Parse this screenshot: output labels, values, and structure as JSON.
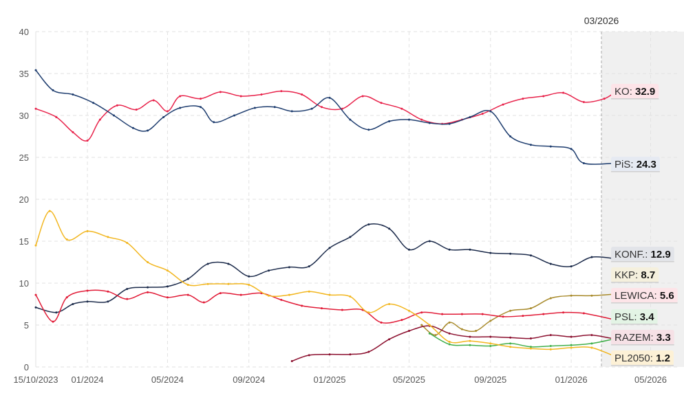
{
  "chart_data": {
    "type": "line",
    "title": "",
    "xlabel": "",
    "ylabel": "",
    "ylim": [
      0,
      40
    ],
    "xlim": [
      "2023-10-15",
      "2026-06-10"
    ],
    "x_ticks": [
      "15/10/2023",
      "01/2024",
      "05/2024",
      "09/2024",
      "01/2025",
      "05/2025",
      "09/2025",
      "01/2026",
      "05/2026"
    ],
    "x_tick_dates": [
      "2023-10-15",
      "2024-01-01",
      "2024-05-01",
      "2024-09-01",
      "2025-01-01",
      "2025-05-01",
      "2025-09-01",
      "2026-01-01",
      "2026-05-01"
    ],
    "y_ticks": [
      0,
      5,
      10,
      15,
      20,
      25,
      30,
      35,
      40
    ],
    "grid": true,
    "current_date_label": "03/2026",
    "current_date": "2026-03-10",
    "series": [
      {
        "name": "KO",
        "value_label": "32.9",
        "color": "#e8224a",
        "badge_bg": "#fde4e8",
        "points": [
          [
            "2023-10-15",
            30.8
          ],
          [
            "2023-11-15",
            29.8
          ],
          [
            "2023-12-10",
            28.0
          ],
          [
            "2024-01-01",
            27.0
          ],
          [
            "2024-01-20",
            29.5
          ],
          [
            "2024-02-15",
            31.2
          ],
          [
            "2024-03-15",
            30.7
          ],
          [
            "2024-04-10",
            31.8
          ],
          [
            "2024-05-01",
            30.5
          ],
          [
            "2024-05-20",
            32.3
          ],
          [
            "2024-06-20",
            32.0
          ],
          [
            "2024-07-20",
            32.8
          ],
          [
            "2024-08-20",
            32.3
          ],
          [
            "2024-09-20",
            32.5
          ],
          [
            "2024-10-20",
            32.9
          ],
          [
            "2024-11-20",
            32.5
          ],
          [
            "2024-12-20",
            31.0
          ],
          [
            "2025-01-20",
            30.8
          ],
          [
            "2025-02-20",
            32.3
          ],
          [
            "2025-03-20",
            31.5
          ],
          [
            "2025-04-20",
            30.8
          ],
          [
            "2025-05-20",
            29.5
          ],
          [
            "2025-06-20",
            29.0
          ],
          [
            "2025-07-20",
            29.5
          ],
          [
            "2025-08-20",
            30.2
          ],
          [
            "2025-09-20",
            31.3
          ],
          [
            "2025-10-20",
            32.0
          ],
          [
            "2025-11-20",
            32.3
          ],
          [
            "2025-12-20",
            32.7
          ],
          [
            "2026-01-20",
            31.6
          ],
          [
            "2026-02-20",
            32.0
          ],
          [
            "2026-03-10",
            32.9
          ]
        ]
      },
      {
        "name": "PiS",
        "value_label": "24.3",
        "color": "#1d3c6e",
        "badge_bg": "#e6eaf2",
        "points": [
          [
            "2023-10-15",
            35.4
          ],
          [
            "2023-11-10",
            33.0
          ],
          [
            "2023-12-10",
            32.5
          ],
          [
            "2024-01-10",
            31.5
          ],
          [
            "2024-02-10",
            30.0
          ],
          [
            "2024-03-10",
            28.5
          ],
          [
            "2024-04-01",
            28.2
          ],
          [
            "2024-04-25",
            29.8
          ],
          [
            "2024-05-20",
            30.9
          ],
          [
            "2024-06-20",
            31.0
          ],
          [
            "2024-07-10",
            29.2
          ],
          [
            "2024-08-10",
            30.0
          ],
          [
            "2024-09-10",
            30.9
          ],
          [
            "2024-10-10",
            31.0
          ],
          [
            "2024-11-05",
            30.5
          ],
          [
            "2024-12-05",
            30.8
          ],
          [
            "2025-01-01",
            32.1
          ],
          [
            "2025-02-01",
            29.5
          ],
          [
            "2025-03-01",
            28.3
          ],
          [
            "2025-04-01",
            29.3
          ],
          [
            "2025-05-01",
            29.5
          ],
          [
            "2025-06-01",
            29.1
          ],
          [
            "2025-07-01",
            29.0
          ],
          [
            "2025-08-01",
            29.8
          ],
          [
            "2025-09-01",
            30.5
          ],
          [
            "2025-10-01",
            27.5
          ],
          [
            "2025-11-01",
            26.5
          ],
          [
            "2025-12-01",
            26.3
          ],
          [
            "2026-01-01",
            26.0
          ],
          [
            "2026-01-20",
            24.3
          ],
          [
            "2026-03-10",
            24.3
          ]
        ]
      },
      {
        "name": "KONF.",
        "value_label": "12.9",
        "color": "#1b2a4a",
        "badge_bg": "#e2e4e9",
        "points": [
          [
            "2023-10-15",
            7.1
          ],
          [
            "2023-11-15",
            6.5
          ],
          [
            "2023-12-10",
            7.5
          ],
          [
            "2024-01-01",
            7.8
          ],
          [
            "2024-02-01",
            7.8
          ],
          [
            "2024-03-01",
            9.3
          ],
          [
            "2024-04-01",
            9.5
          ],
          [
            "2024-05-01",
            9.6
          ],
          [
            "2024-06-01",
            10.5
          ],
          [
            "2024-07-01",
            12.3
          ],
          [
            "2024-08-01",
            12.3
          ],
          [
            "2024-09-01",
            10.8
          ],
          [
            "2024-10-01",
            11.5
          ],
          [
            "2024-11-01",
            11.9
          ],
          [
            "2024-12-01",
            12.0
          ],
          [
            "2025-01-01",
            14.2
          ],
          [
            "2025-02-01",
            15.5
          ],
          [
            "2025-03-01",
            17.0
          ],
          [
            "2025-04-01",
            16.5
          ],
          [
            "2025-05-01",
            14.0
          ],
          [
            "2025-06-01",
            15.0
          ],
          [
            "2025-07-01",
            14.0
          ],
          [
            "2025-08-01",
            14.0
          ],
          [
            "2025-09-01",
            13.6
          ],
          [
            "2025-10-01",
            13.5
          ],
          [
            "2025-11-01",
            13.3
          ],
          [
            "2025-12-01",
            12.3
          ],
          [
            "2026-01-01",
            12.0
          ],
          [
            "2026-02-01",
            13.1
          ],
          [
            "2026-03-10",
            12.9
          ]
        ]
      },
      {
        "name": "KKP",
        "value_label": "8.7",
        "color": "#a88a2b",
        "badge_bg": "#f5f0dd",
        "points": [
          [
            "2025-05-20",
            5.0
          ],
          [
            "2025-06-10",
            3.8
          ],
          [
            "2025-07-01",
            5.3
          ],
          [
            "2025-07-20",
            4.5
          ],
          [
            "2025-08-10",
            4.3
          ],
          [
            "2025-09-01",
            5.5
          ],
          [
            "2025-10-01",
            6.7
          ],
          [
            "2025-11-01",
            7.0
          ],
          [
            "2025-12-01",
            8.2
          ],
          [
            "2026-01-01",
            8.5
          ],
          [
            "2026-02-01",
            8.5
          ],
          [
            "2026-03-10",
            8.7
          ]
        ]
      },
      {
        "name": "LEWICA",
        "value_label": "5.6",
        "color": "#e11a36",
        "badge_bg": "#fde4e8",
        "points": [
          [
            "2023-10-15",
            8.6
          ],
          [
            "2023-11-10",
            5.4
          ],
          [
            "2023-12-01",
            8.3
          ],
          [
            "2024-01-01",
            9.1
          ],
          [
            "2024-02-01",
            9.0
          ],
          [
            "2024-03-01",
            8.1
          ],
          [
            "2024-04-01",
            8.9
          ],
          [
            "2024-05-01",
            8.3
          ],
          [
            "2024-06-01",
            8.6
          ],
          [
            "2024-06-25",
            7.7
          ],
          [
            "2024-07-20",
            8.8
          ],
          [
            "2024-08-20",
            8.6
          ],
          [
            "2024-09-20",
            8.8
          ],
          [
            "2024-10-20",
            8.0
          ],
          [
            "2024-11-20",
            7.3
          ],
          [
            "2024-12-20",
            7.0
          ],
          [
            "2025-01-20",
            6.8
          ],
          [
            "2025-02-20",
            6.8
          ],
          [
            "2025-03-20",
            5.3
          ],
          [
            "2025-04-20",
            5.6
          ],
          [
            "2025-05-20",
            6.5
          ],
          [
            "2025-06-20",
            6.3
          ],
          [
            "2025-07-20",
            6.3
          ],
          [
            "2025-08-20",
            6.3
          ],
          [
            "2025-09-20",
            6.0
          ],
          [
            "2025-10-20",
            6.1
          ],
          [
            "2025-11-20",
            6.3
          ],
          [
            "2025-12-20",
            6.5
          ],
          [
            "2026-01-20",
            6.4
          ],
          [
            "2026-03-10",
            5.6
          ]
        ]
      },
      {
        "name": "PSL",
        "value_label": "3.4",
        "color": "#3fae49",
        "badge_bg": "#e3f4e5",
        "points": [
          [
            "2025-06-01",
            4.0
          ],
          [
            "2025-07-01",
            2.7
          ],
          [
            "2025-08-01",
            2.6
          ],
          [
            "2025-09-01",
            2.5
          ],
          [
            "2025-10-01",
            2.8
          ],
          [
            "2025-11-01",
            2.4
          ],
          [
            "2025-12-01",
            2.5
          ],
          [
            "2026-01-01",
            2.6
          ],
          [
            "2026-02-01",
            2.8
          ],
          [
            "2026-03-10",
            3.4
          ]
        ]
      },
      {
        "name": "RAZEM",
        "value_label": "3.3",
        "color": "#8b0f2e",
        "badge_bg": "#f6e1e6",
        "points": [
          [
            "2024-11-05",
            0.7
          ],
          [
            "2024-12-01",
            1.4
          ],
          [
            "2025-01-01",
            1.5
          ],
          [
            "2025-02-01",
            1.5
          ],
          [
            "2025-03-01",
            1.8
          ],
          [
            "2025-04-01",
            3.3
          ],
          [
            "2025-05-01",
            4.3
          ],
          [
            "2025-06-01",
            4.9
          ],
          [
            "2025-07-01",
            4.0
          ],
          [
            "2025-08-01",
            3.6
          ],
          [
            "2025-09-01",
            3.6
          ],
          [
            "2025-10-01",
            3.5
          ],
          [
            "2025-11-01",
            3.4
          ],
          [
            "2025-12-01",
            3.8
          ],
          [
            "2026-01-01",
            3.6
          ],
          [
            "2026-02-01",
            3.8
          ],
          [
            "2026-03-10",
            3.3
          ]
        ]
      },
      {
        "name": "PL2050",
        "value_label": "1.2",
        "color": "#f2b61f",
        "badge_bg": "#fdf1d6",
        "points": [
          [
            "2023-10-15",
            14.5
          ],
          [
            "2023-11-05",
            18.6
          ],
          [
            "2023-12-01",
            15.2
          ],
          [
            "2024-01-01",
            16.2
          ],
          [
            "2024-02-01",
            15.5
          ],
          [
            "2024-03-01",
            14.8
          ],
          [
            "2024-04-01",
            12.5
          ],
          [
            "2024-05-01",
            11.5
          ],
          [
            "2024-06-01",
            9.8
          ],
          [
            "2024-07-01",
            9.9
          ],
          [
            "2024-08-01",
            9.9
          ],
          [
            "2024-09-01",
            9.8
          ],
          [
            "2024-10-01",
            8.5
          ],
          [
            "2024-11-01",
            8.6
          ],
          [
            "2024-12-01",
            9.0
          ],
          [
            "2025-01-01",
            8.6
          ],
          [
            "2025-02-01",
            8.4
          ],
          [
            "2025-03-01",
            6.5
          ],
          [
            "2025-04-01",
            7.5
          ],
          [
            "2025-05-01",
            6.7
          ],
          [
            "2025-06-01",
            5.0
          ],
          [
            "2025-07-01",
            3.0
          ],
          [
            "2025-08-01",
            3.1
          ],
          [
            "2025-09-01",
            2.8
          ],
          [
            "2025-10-01",
            2.4
          ],
          [
            "2025-11-01",
            2.2
          ],
          [
            "2025-12-01",
            2.1
          ],
          [
            "2026-01-01",
            2.3
          ],
          [
            "2026-02-01",
            2.3
          ],
          [
            "2026-03-10",
            1.2
          ]
        ]
      }
    ]
  }
}
